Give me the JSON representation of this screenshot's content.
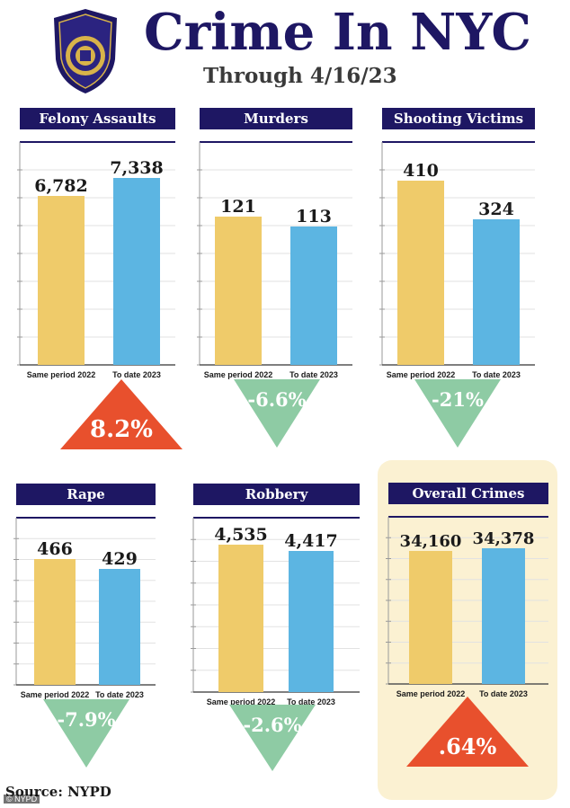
{
  "header": {
    "title": "Crime In NYC",
    "subtitle": "Through 4/16/23",
    "logo_text": "POLICE DEPARTMENT CITY OF NEW YORK"
  },
  "footer": {
    "source": "Source: NYPD",
    "credit": "© NYPD"
  },
  "colors": {
    "navy": "#1e1763",
    "bar_2022": "#efcb6a",
    "bar_2023": "#5cb5e2",
    "increase": "#e8502d",
    "decrease": "#8ecba4",
    "highlight_bg": "#fbf1d2"
  },
  "chart_data": [
    {
      "type": "bar",
      "title": "Felony Assaults",
      "categories": [
        "Same period 2022",
        "To date 2023"
      ],
      "values": [
        6782,
        7338
      ],
      "value_labels": [
        "6,782",
        "7,338"
      ],
      "change": "8.2%",
      "direction": "up",
      "grid": true
    },
    {
      "type": "bar",
      "title": "Murders",
      "categories": [
        "Same period 2022",
        "To date 2023"
      ],
      "values": [
        121,
        113
      ],
      "value_labels": [
        "121",
        "113"
      ],
      "change": "-6.6%",
      "direction": "down",
      "grid": true
    },
    {
      "type": "bar",
      "title": "Shooting Victims",
      "categories": [
        "Same period 2022",
        "To date 2023"
      ],
      "values": [
        410,
        324
      ],
      "value_labels": [
        "410",
        "324"
      ],
      "change": "-21%",
      "direction": "down",
      "grid": true
    },
    {
      "type": "bar",
      "title": "Rape",
      "categories": [
        "Same period 2022",
        "To date 2023"
      ],
      "values": [
        466,
        429
      ],
      "value_labels": [
        "466",
        "429"
      ],
      "change": "-7.9%",
      "direction": "down",
      "grid": true
    },
    {
      "type": "bar",
      "title": "Robbery",
      "categories": [
        "Same period 2022",
        "To date 2023"
      ],
      "values": [
        4535,
        4417
      ],
      "value_labels": [
        "4,535",
        "4,417"
      ],
      "change": "-2.6%",
      "direction": "down",
      "grid": true
    },
    {
      "type": "bar",
      "title": "Overall Crimes",
      "categories": [
        "Same period 2022",
        "To date 2023"
      ],
      "values": [
        34160,
        34378
      ],
      "value_labels": [
        "34,160",
        "34,378"
      ],
      "change": ".64%",
      "direction": "up",
      "grid": true,
      "highlighted": true
    }
  ]
}
